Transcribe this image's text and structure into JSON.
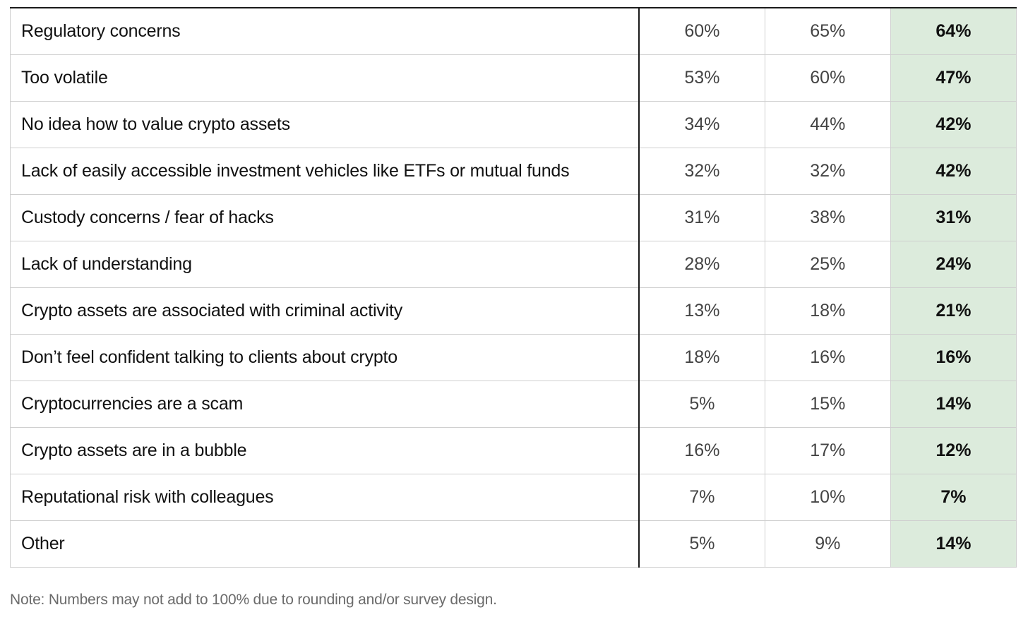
{
  "chart_data": {
    "type": "table",
    "columns": [
      "",
      "",
      "",
      ""
    ],
    "highlight_column": 3,
    "highlight_color": "#dcebdc",
    "rows": [
      {
        "label": "Regulatory concerns",
        "values": [
          "60%",
          "65%",
          "64%"
        ]
      },
      {
        "label": "Too volatile",
        "values": [
          "53%",
          "60%",
          "47%"
        ]
      },
      {
        "label": "No idea how to value crypto assets",
        "values": [
          "34%",
          "44%",
          "42%"
        ]
      },
      {
        "label": "Lack of easily accessible investment vehicles like ETFs or mutual funds",
        "values": [
          "32%",
          "32%",
          "42%"
        ]
      },
      {
        "label": "Custody concerns / fear of hacks",
        "values": [
          "31%",
          "38%",
          "31%"
        ]
      },
      {
        "label": "Lack of understanding",
        "values": [
          "28%",
          "25%",
          "24%"
        ]
      },
      {
        "label": "Crypto assets are associated with criminal activity",
        "values": [
          "13%",
          "18%",
          "21%"
        ]
      },
      {
        "label": "Don’t feel confident talking to clients about crypto",
        "values": [
          "18%",
          "16%",
          "16%"
        ]
      },
      {
        "label": "Cryptocurrencies are a scam",
        "values": [
          "5%",
          "15%",
          "14%"
        ]
      },
      {
        "label": "Crypto assets are in a bubble",
        "values": [
          "16%",
          "17%",
          "12%"
        ]
      },
      {
        "label": "Reputational risk with colleagues",
        "values": [
          "7%",
          "10%",
          "7%"
        ]
      },
      {
        "label": "Other",
        "values": [
          "5%",
          "9%",
          "14%"
        ]
      }
    ],
    "note": "Note: Numbers may not add to 100% due to rounding and/or survey design."
  }
}
